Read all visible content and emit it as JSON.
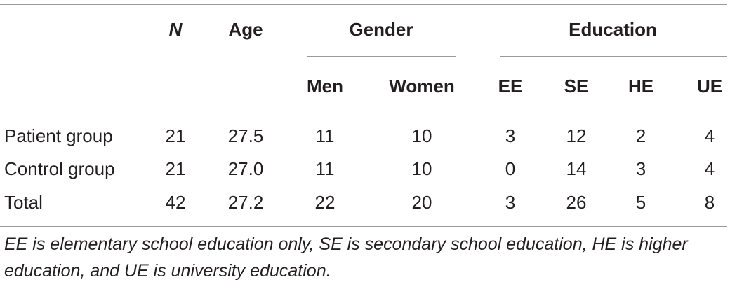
{
  "table": {
    "headers": {
      "n": "N",
      "age": "Age",
      "gender": "Gender",
      "education": "Education",
      "gender_sub": [
        "Men",
        "Women"
      ],
      "education_sub": [
        "EE",
        "SE",
        "HE",
        "UE"
      ]
    },
    "rows": [
      {
        "label": "Patient group",
        "n": "21",
        "age": "27.5",
        "men": "11",
        "women": "10",
        "ee": "3",
        "se": "12",
        "he": "2",
        "ue": "4"
      },
      {
        "label": "Control group",
        "n": "21",
        "age": "27.0",
        "men": "11",
        "women": "10",
        "ee": "0",
        "se": "14",
        "he": "3",
        "ue": "4"
      },
      {
        "label": "Total",
        "n": "42",
        "age": "27.2",
        "men": "22",
        "women": "20",
        "ee": "3",
        "se": "26",
        "he": "5",
        "ue": "8"
      }
    ],
    "footnote": "EE is elementary school education only, SE is secondary school education, HE is higher education, and UE is university education."
  }
}
